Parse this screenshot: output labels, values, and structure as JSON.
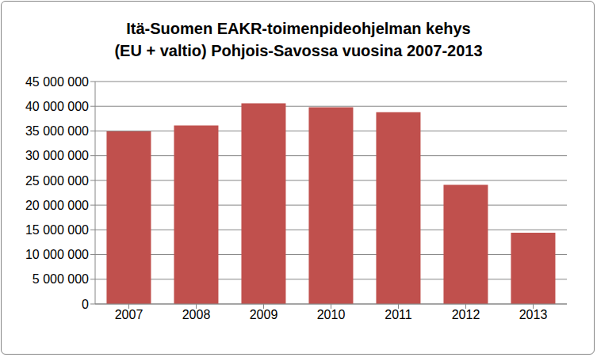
{
  "chart_data": {
    "type": "bar",
    "title": "Itä-Suomen EAKR-toimenpideohjelman kehys\n(EU + valtio) Pohjois-Savossa vuosina 2007-2013",
    "categories": [
      "2007",
      "2008",
      "2009",
      "2010",
      "2011",
      "2012",
      "2013"
    ],
    "values": [
      34900000,
      36100000,
      40600000,
      39800000,
      38800000,
      24100000,
      14400000
    ],
    "color": "#c0504d",
    "ylim": [
      0,
      45000000
    ],
    "yticks": [
      0,
      {
        "value": 5000000,
        "label": "5 000 000"
      },
      {
        "value": 10000000,
        "label": "10 000 000"
      },
      {
        "value": 15000000,
        "label": "15 000 000"
      },
      {
        "value": 20000000,
        "label": "20 000 000"
      },
      {
        "value": 25000000,
        "label": "25 000 000"
      },
      {
        "value": 30000000,
        "label": "30 000 000"
      },
      {
        "value": 35000000,
        "label": "35 000 000"
      },
      {
        "value": 40000000,
        "label": "40 000 000"
      },
      {
        "value": 45000000,
        "label": "45 000 000"
      }
    ],
    "grid": true
  }
}
